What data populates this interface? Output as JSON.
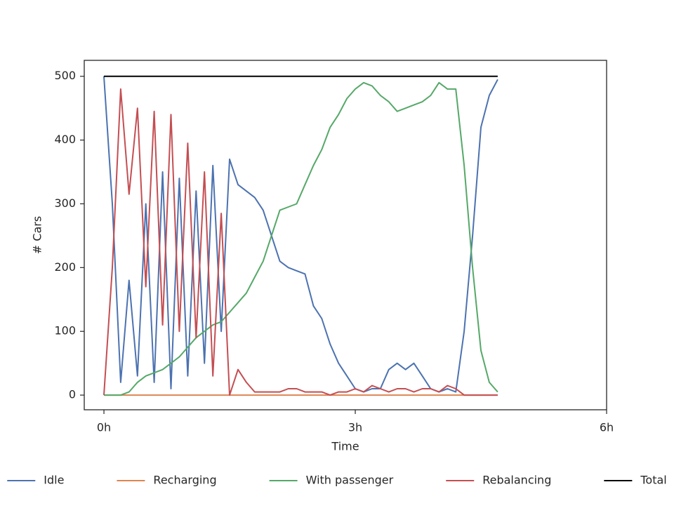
{
  "chart_data": {
    "type": "line",
    "x_label": "Time",
    "y_label": "# Cars",
    "x": [
      0,
      0.1,
      0.2,
      0.3,
      0.4,
      0.5,
      0.6,
      0.7,
      0.8,
      0.9,
      1.0,
      1.1,
      1.2,
      1.3,
      1.4,
      1.5,
      1.6,
      1.7,
      1.8,
      1.9,
      2.0,
      2.1,
      2.2,
      2.3,
      2.4,
      2.5,
      2.6,
      2.7,
      2.8,
      2.9,
      3.0,
      3.1,
      3.2,
      3.3,
      3.4,
      3.5,
      3.6,
      3.7,
      3.8,
      3.9,
      4.0,
      4.1,
      4.2,
      4.3,
      4.4,
      4.5,
      4.6,
      4.7
    ],
    "series": [
      {
        "name": "Idle",
        "color": "#4c72b0",
        "values": [
          500,
          300,
          20,
          180,
          30,
          300,
          20,
          350,
          10,
          340,
          30,
          320,
          50,
          360,
          100,
          370,
          330,
          320,
          310,
          290,
          250,
          210,
          200,
          195,
          190,
          140,
          120,
          80,
          50,
          30,
          10,
          5,
          10,
          10,
          40,
          50,
          40,
          50,
          30,
          10,
          5,
          10,
          5,
          100,
          250,
          420,
          470,
          495
        ]
      },
      {
        "name": "Recharging",
        "color": "#dd8452",
        "values": [
          0,
          0,
          0,
          0,
          0,
          0,
          0,
          0,
          0,
          0,
          0,
          0,
          0,
          0,
          0,
          0,
          0,
          0,
          0,
          0,
          0,
          0,
          0,
          0,
          0,
          0,
          0,
          0,
          0,
          0,
          0,
          0,
          0,
          0,
          0,
          0,
          0,
          0,
          0,
          0,
          0,
          0,
          0,
          0,
          0,
          0,
          0,
          0
        ]
      },
      {
        "name": "With passenger",
        "color": "#55a868",
        "values": [
          0,
          0,
          0,
          5,
          20,
          30,
          35,
          40,
          50,
          60,
          75,
          90,
          100,
          110,
          115,
          130,
          145,
          160,
          185,
          210,
          250,
          290,
          295,
          300,
          330,
          360,
          385,
          420,
          440,
          465,
          480,
          490,
          485,
          470,
          460,
          445,
          450,
          455,
          460,
          470,
          490,
          480,
          480,
          360,
          200,
          70,
          20,
          5
        ]
      },
      {
        "name": "Rebalancing",
        "color": "#c44e52",
        "values": [
          0,
          200,
          480,
          315,
          450,
          170,
          445,
          110,
          440,
          100,
          395,
          90,
          350,
          30,
          285,
          0,
          40,
          20,
          5,
          5,
          5,
          5,
          10,
          10,
          5,
          5,
          5,
          0,
          5,
          5,
          10,
          5,
          15,
          10,
          5,
          10,
          10,
          5,
          10,
          10,
          5,
          15,
          10,
          0,
          0,
          0,
          0,
          0
        ]
      },
      {
        "name": "Total",
        "color": "#000000",
        "values": [
          500,
          500,
          500,
          500,
          500,
          500,
          500,
          500,
          500,
          500,
          500,
          500,
          500,
          500,
          500,
          500,
          500,
          500,
          500,
          500,
          500,
          500,
          500,
          500,
          500,
          500,
          500,
          500,
          500,
          500,
          500,
          500,
          500,
          500,
          500,
          500,
          500,
          500,
          500,
          500,
          500,
          500,
          500,
          500,
          500,
          500,
          500,
          500
        ]
      }
    ],
    "xlim": [
      -0.235,
      6
    ],
    "ylim": [
      -23,
      525
    ],
    "xticks": [
      {
        "value": 0,
        "label": "0h"
      },
      {
        "value": 3,
        "label": "3h"
      },
      {
        "value": 6,
        "label": "6h"
      }
    ],
    "yticks": [
      0,
      100,
      200,
      300,
      400,
      500
    ],
    "grid": false,
    "legend": "bottom"
  }
}
